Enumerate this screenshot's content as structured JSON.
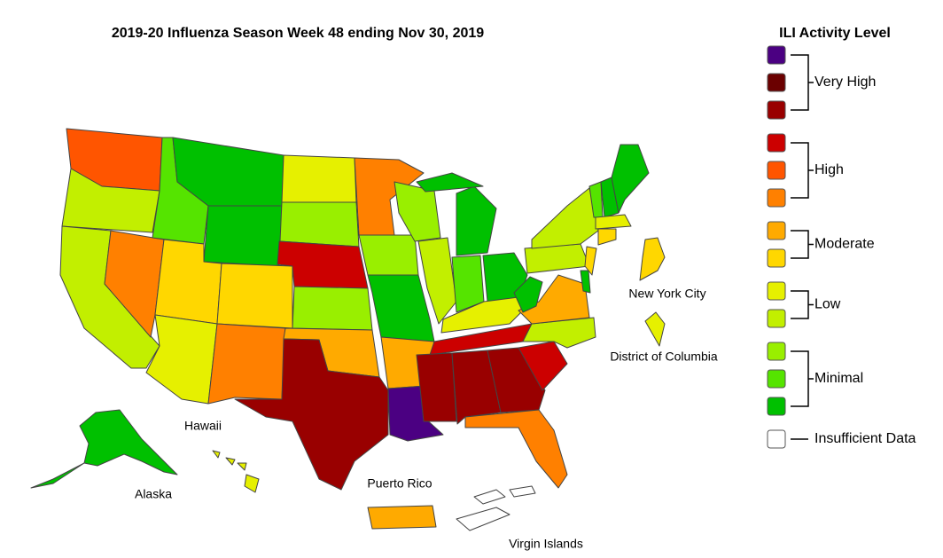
{
  "title": "2019-20 Influenza Season Week 48 ending Nov 30, 2019",
  "legend": {
    "title": "ILI Activity Level",
    "levels": [
      {
        "label": "Very High",
        "colors": [
          "#4b0082",
          "#6b0000",
          "#990000"
        ]
      },
      {
        "label": "High",
        "colors": [
          "#cc0000",
          "#ff5500",
          "#ff8000"
        ]
      },
      {
        "label": "Moderate",
        "colors": [
          "#ffaa00",
          "#ffd700"
        ]
      },
      {
        "label": "Low",
        "colors": [
          "#e6f000",
          "#c2ef00"
        ]
      },
      {
        "label": "Minimal",
        "colors": [
          "#99ef00",
          "#55e400",
          "#00c000"
        ]
      },
      {
        "label": "Insufficient Data",
        "colors": [
          "#ffffff"
        ]
      }
    ]
  },
  "labels": [
    "New York City",
    "District of Columbia",
    "Hawaii",
    "Alaska",
    "Puerto Rico",
    "Virgin Islands"
  ]
}
